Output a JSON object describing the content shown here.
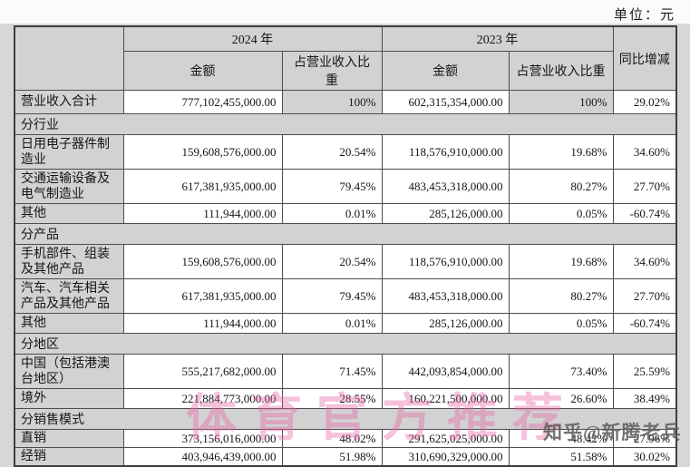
{
  "page": {
    "unit_label": "单位：元"
  },
  "watermarks": {
    "pink_text": "体育官方推荐",
    "credit_text": "知乎@新腾老兵"
  },
  "colors": {
    "cell_gray": "#d2d2d2",
    "page_bg": "#d7d7d7",
    "border": "#4d4d4d",
    "watermark_pink": "#e664a5",
    "watermark_gray": "#5f5f5f"
  },
  "table": {
    "headers": {
      "year_2024": "2024 年",
      "year_2023": "2023 年",
      "yoy": "同比增减",
      "amount": "金额",
      "ratio": "占营业收入比重"
    },
    "total_row": {
      "label": "营业收入合计",
      "amount_2024": "777,102,455,000.00",
      "ratio_2024": "100%",
      "amount_2023": "602,315,354,000.00",
      "ratio_2023": "100%",
      "yoy": "29.02%"
    },
    "sections": [
      {
        "title": "分行业",
        "rows": [
          {
            "label": "日用电子器件制造业",
            "amount_2024": "159,608,576,000.00",
            "ratio_2024": "20.54%",
            "amount_2023": "118,576,910,000.00",
            "ratio_2023": "19.68%",
            "yoy": "34.60%"
          },
          {
            "label": "交通运输设备及电气制造业",
            "amount_2024": "617,381,935,000.00",
            "ratio_2024": "79.45%",
            "amount_2023": "483,453,318,000.00",
            "ratio_2023": "80.27%",
            "yoy": "27.70%"
          },
          {
            "label": "其他",
            "amount_2024": "111,944,000.00",
            "ratio_2024": "0.01%",
            "amount_2023": "285,126,000.00",
            "ratio_2023": "0.05%",
            "yoy": "-60.74%"
          }
        ]
      },
      {
        "title": "分产品",
        "rows": [
          {
            "label": "手机部件、组装及其他产品",
            "amount_2024": "159,608,576,000.00",
            "ratio_2024": "20.54%",
            "amount_2023": "118,576,910,000.00",
            "ratio_2023": "19.68%",
            "yoy": "34.60%"
          },
          {
            "label": "汽车、汽车相关产品及其他产品",
            "amount_2024": "617,381,935,000.00",
            "ratio_2024": "79.45%",
            "amount_2023": "483,453,318,000.00",
            "ratio_2023": "80.27%",
            "yoy": "27.70%"
          },
          {
            "label": "其他",
            "amount_2024": "111,944,000.00",
            "ratio_2024": "0.01%",
            "amount_2023": "285,126,000.00",
            "ratio_2023": "0.05%",
            "yoy": "-60.74%"
          }
        ]
      },
      {
        "title": "分地区",
        "rows": [
          {
            "label": "中国（包括港澳台地区）",
            "amount_2024": "555,217,682,000.00",
            "ratio_2024": "71.45%",
            "amount_2023": "442,093,854,000.00",
            "ratio_2023": "73.40%",
            "yoy": "25.59%"
          },
          {
            "label": "境外",
            "amount_2024": "221,884,773,000.00",
            "ratio_2024": "28.55%",
            "amount_2023": "160,221,500,000.00",
            "ratio_2023": "26.60%",
            "yoy": "38.49%"
          }
        ]
      },
      {
        "title": "分销售模式",
        "rows": [
          {
            "label": "直销",
            "amount_2024": "373,156,016,000.00",
            "ratio_2024": "48.02%",
            "amount_2023": "291,625,025,000.00",
            "ratio_2023": "48.42%",
            "yoy": "27.96%"
          },
          {
            "label": "经销",
            "amount_2024": "403,946,439,000.00",
            "ratio_2024": "51.98%",
            "amount_2023": "310,690,329,000.00",
            "ratio_2023": "51.58%",
            "yoy": "30.02%"
          }
        ]
      }
    ]
  }
}
